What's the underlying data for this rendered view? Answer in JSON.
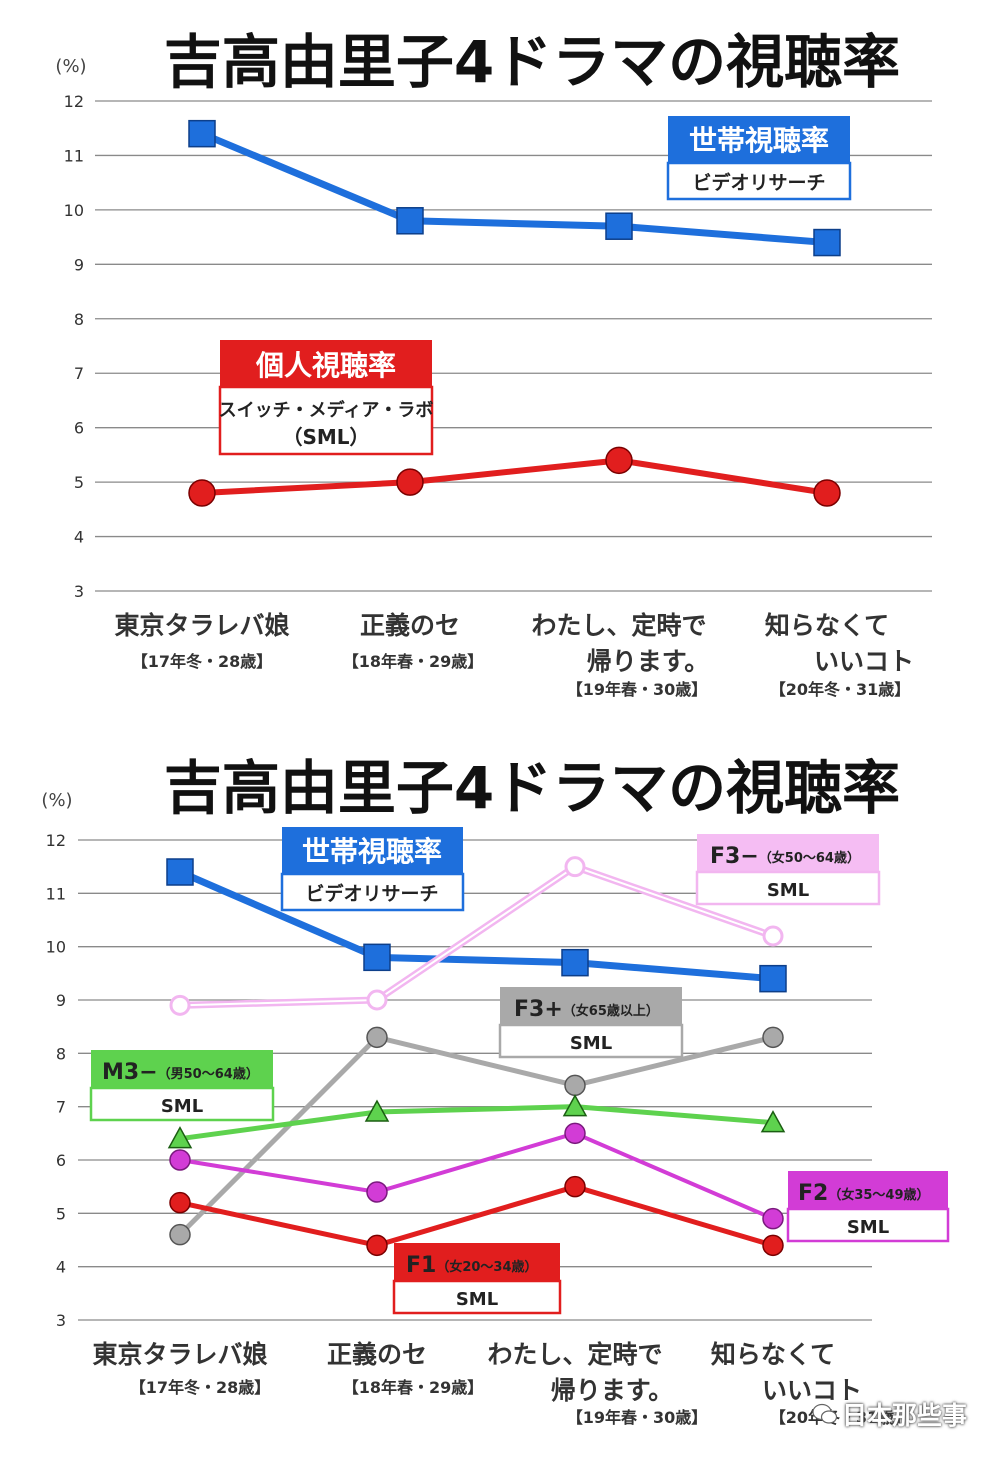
{
  "unit": "(%)",
  "categories": [
    {
      "name": [
        "東京タラレバ娘"
      ],
      "sub": "【17年冬・28歳】"
    },
    {
      "name": [
        "正義のセ"
      ],
      "sub": "【18年春・29歳】"
    },
    {
      "name": [
        "わたし、定時で",
        "帰ります。"
      ],
      "sub": "【19年春・30歳】"
    },
    {
      "name": [
        "知らなくて",
        "いいコト"
      ],
      "sub": "【20年冬・31歳】"
    }
  ],
  "legend": {
    "household": {
      "title": "世帯視聴率",
      "source": "ビデオリサーチ"
    },
    "personal": {
      "title": "個人視聴率",
      "source": "スイッチ・メディア・ラボ",
      "source2": "（SML）"
    },
    "f3minus": {
      "code": "F3−",
      "detail": "（女50～64歳）",
      "source": "SML"
    },
    "f3plus": {
      "code": "F3+",
      "detail": "（女65歳以上）",
      "source": "SML"
    },
    "m3minus": {
      "code": "M3−",
      "detail": "（男50～64歳）",
      "source": "SML"
    },
    "f2": {
      "code": "F2",
      "detail": "（女35～49歳）",
      "source": "SML"
    },
    "f1": {
      "code": "F1",
      "detail": "（女20～34歳）",
      "source": "SML"
    }
  },
  "watermark": "日本那些事",
  "colors": {
    "household": "#1e6fdc",
    "personal": "#e11e1e",
    "f3minus": "#f2b6f0",
    "f3plus": "#a9a9a9",
    "m3minus": "#5ed24e",
    "f2": "#d23cd6",
    "f1": "#e11e1e"
  },
  "chart_data": [
    {
      "type": "line",
      "title": "吉高由里子4ドラマの視聴率",
      "ylabel": "(%)",
      "ylim": [
        3,
        12
      ],
      "yticks": [
        3,
        4,
        5,
        6,
        7,
        8,
        9,
        10,
        11,
        12
      ],
      "grid": true,
      "categories": [
        "東京タラレバ娘【17年冬・28歳】",
        "正義のセ【18年春・29歳】",
        "わたし、定時で帰ります。【19年春・30歳】",
        "知らなくていいコト【20年冬・31歳】"
      ],
      "series": [
        {
          "name": "世帯視聴率 ビデオリサーチ",
          "values": [
            11.4,
            9.8,
            9.7,
            9.4
          ]
        },
        {
          "name": "個人視聴率 スイッチ・メディア・ラボ（SML）",
          "values": [
            4.8,
            5.0,
            5.4,
            4.8
          ]
        }
      ]
    },
    {
      "type": "line",
      "title": "吉高由里子4ドラマの視聴率",
      "ylabel": "(%)",
      "ylim": [
        3,
        12
      ],
      "yticks": [
        3,
        4,
        5,
        6,
        7,
        8,
        9,
        10,
        11,
        12
      ],
      "grid": true,
      "categories": [
        "東京タラレバ娘【17年冬・28歳】",
        "正義のセ【18年春・29歳】",
        "わたし、定時で帰ります。【19年春・30歳】",
        "知らなくていいコト【20年冬・31歳】"
      ],
      "series": [
        {
          "name": "世帯視聴率 ビデオリサーチ",
          "values": [
            11.4,
            9.8,
            9.7,
            9.4
          ]
        },
        {
          "name": "F3−（女50～64歳）SML",
          "values": [
            8.9,
            9.0,
            11.5,
            10.2
          ]
        },
        {
          "name": "F3+（女65歳以上）SML",
          "values": [
            4.6,
            8.3,
            7.4,
            8.3
          ]
        },
        {
          "name": "M3−（男50～64歳）SML",
          "values": [
            6.4,
            6.9,
            7.0,
            6.7
          ]
        },
        {
          "name": "F2（女35～49歳）SML",
          "values": [
            6.0,
            5.4,
            6.5,
            4.9
          ]
        },
        {
          "name": "F1（女20～34歳）SML",
          "values": [
            5.2,
            4.4,
            5.5,
            4.4
          ]
        }
      ]
    }
  ]
}
